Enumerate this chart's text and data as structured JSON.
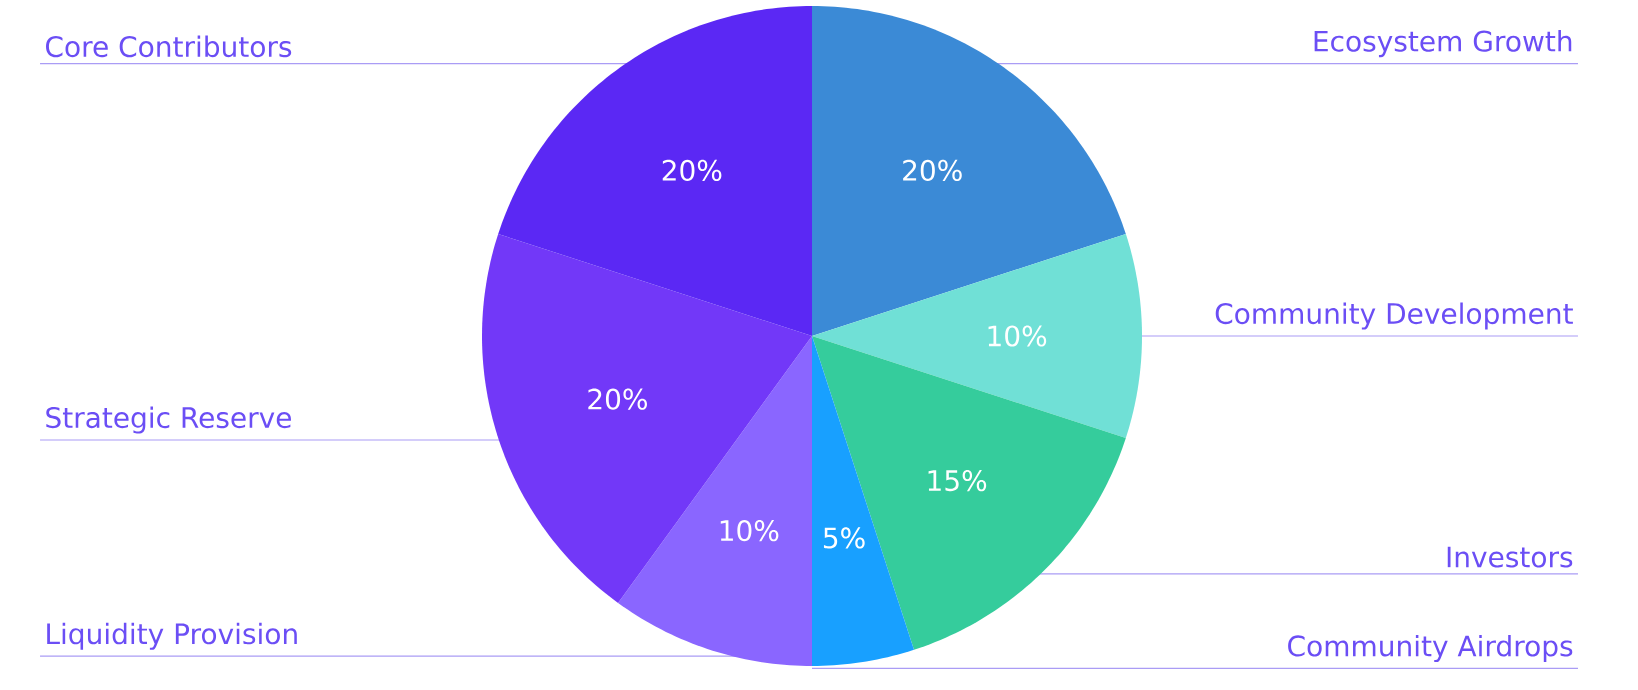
{
  "chart_data": {
    "type": "pie",
    "categories": [
      "Ecosystem Growth",
      "Community Development",
      "Investors",
      "Community Airdrops",
      "Liquidity Provision",
      "Strategic Reserve",
      "Core Contributors"
    ],
    "values": [
      20,
      10,
      15,
      5,
      10,
      20,
      20
    ],
    "value_labels": [
      "20%",
      "10%",
      "15%",
      "5%",
      "10%",
      "20%",
      "20%"
    ],
    "colors": [
      "#3b8ad6",
      "#70e0d6",
      "#35cc9c",
      "#18a0ff",
      "#8a66ff",
      "#7238f8",
      "#5b28f4"
    ]
  }
}
